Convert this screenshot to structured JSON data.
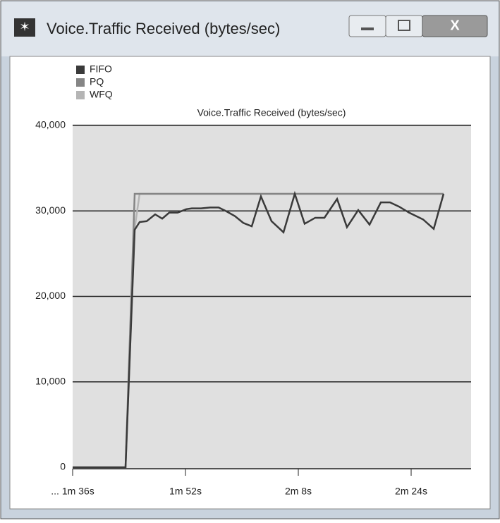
{
  "window": {
    "title": "Voice.Traffic Received (bytes/sec)"
  },
  "chart_data": {
    "type": "line",
    "title": "Voice.Traffic Received (bytes/sec)",
    "x": [
      96,
      103.5,
      104.8,
      105.5,
      106.5,
      107.7,
      108.7,
      109.7,
      110.9,
      112.1,
      112.9,
      114.2,
      115.5,
      116.7,
      117.7,
      119,
      120.2,
      121.4,
      122.7,
      124.2,
      125.9,
      127.5,
      128.9,
      130.4,
      131.7,
      133.5,
      134.9,
      136.5,
      138.1,
      139.7,
      141,
      142.3,
      143.7,
      145.7,
      147.2,
      148.6
    ],
    "series": [
      {
        "name": "FIFO",
        "color": "#3a3a3a",
        "values": [
          0,
          0,
          27800,
          28700,
          28800,
          29600,
          29100,
          29800,
          29800,
          30200,
          30300,
          30300,
          30400,
          30400,
          30000,
          29400,
          28600,
          28200,
          31700,
          28800,
          27500,
          32000,
          28500,
          29200,
          29200,
          31400,
          28100,
          30100,
          28400,
          31000,
          31000,
          30500,
          29800,
          29000,
          27900,
          32000
        ]
      },
      {
        "name": "PQ",
        "color": "#858585",
        "values": [
          0,
          0,
          32000,
          32000,
          32000,
          32000,
          32000,
          32000,
          32000,
          32000,
          32000,
          32000,
          32000,
          32000,
          32000,
          32000,
          32000,
          32000,
          32000,
          32000,
          32000,
          32000,
          32000,
          32000,
          32000,
          32000,
          32000,
          32000,
          32000,
          32000,
          32000,
          32000,
          32000,
          32000,
          32000,
          32000
        ]
      },
      {
        "name": "WFQ",
        "color": "#b5b5b5",
        "values": [
          0,
          0,
          28000,
          32000,
          32000,
          32000,
          32000,
          32000,
          32000,
          32000,
          32000,
          32000,
          32000,
          32000,
          32000,
          32000,
          32000,
          32000,
          32000,
          32000,
          32000,
          32000,
          32000,
          32000,
          32000,
          32000,
          32000,
          32000,
          32000,
          32000,
          32000,
          32000,
          32000,
          32000,
          32000,
          32000
        ]
      }
    ],
    "xlim": [
      96,
      152.5
    ],
    "xticks": [
      {
        "value": 96,
        "label": "... 1m 36s"
      },
      {
        "value": 112,
        "label": "1m 52s"
      },
      {
        "value": 128,
        "label": "2m 8s"
      },
      {
        "value": 144,
        "label": "2m 24s"
      }
    ],
    "ylim": [
      0,
      40000
    ],
    "yticks": [
      0,
      {
        "value": 10000,
        "label": "10,000"
      },
      {
        "value": 20000,
        "label": "20,000"
      },
      {
        "value": 30000,
        "label": "30,000"
      },
      {
        "value": 40000,
        "label": "40,000"
      }
    ],
    "grid": true,
    "legend": "top-left"
  }
}
